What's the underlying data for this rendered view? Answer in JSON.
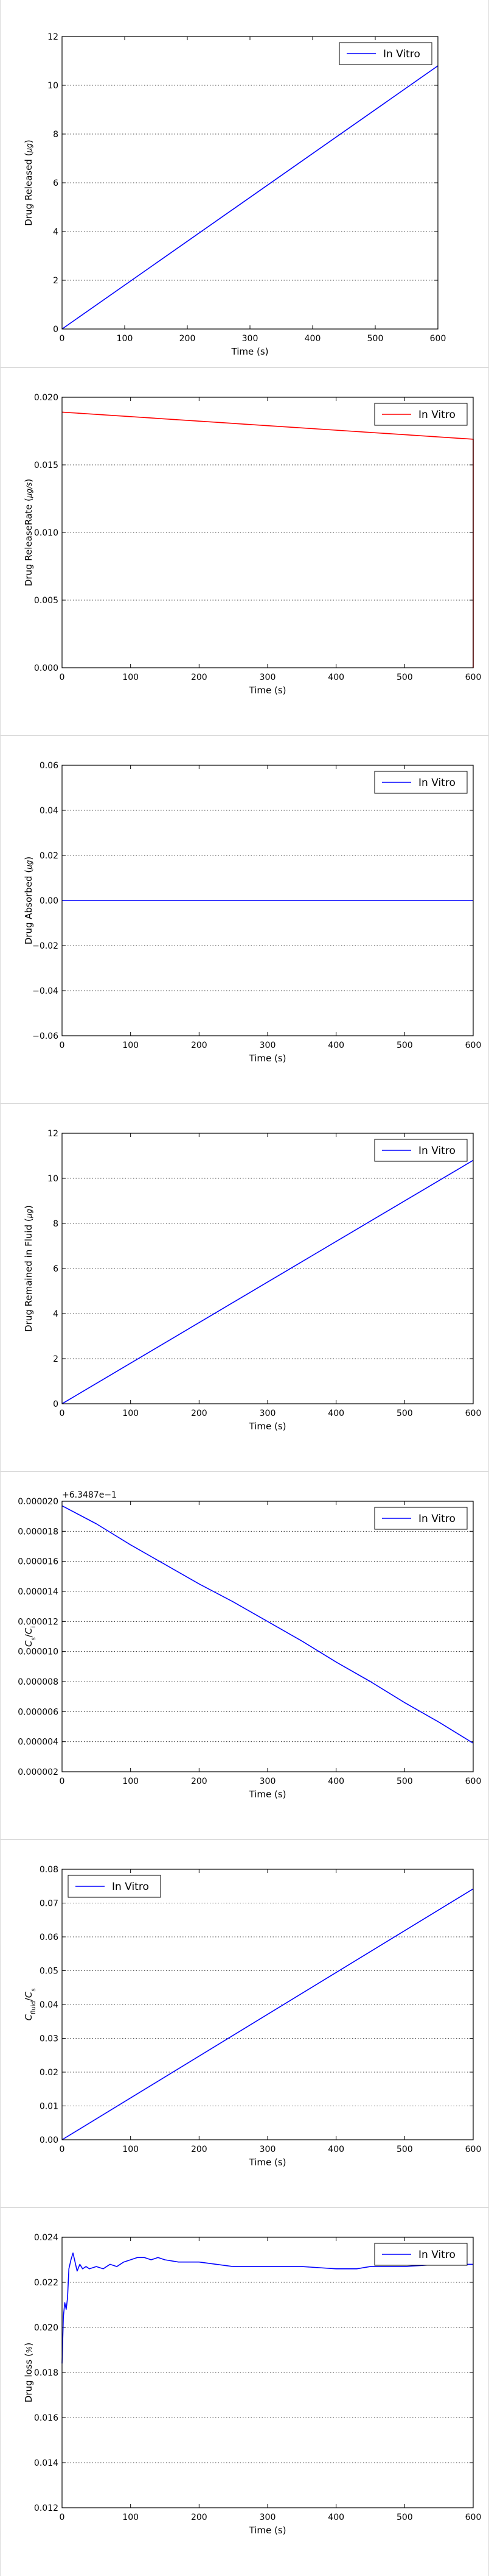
{
  "colors": {
    "blue": "#0000ff",
    "red": "#ff0000",
    "grid": "#000000",
    "frame": "#000000"
  },
  "charts": [
    {
      "name": "drug-released",
      "chart_data": {
        "type": "line",
        "xlabel": "Time (s)",
        "ylabel": "Drug Released (µg)",
        "xlim": [
          0,
          600
        ],
        "ylim": [
          0,
          12
        ],
        "xticks": [
          "0",
          "100",
          "200",
          "300",
          "400",
          "500",
          "600"
        ],
        "yticks": [
          "0",
          "2",
          "4",
          "6",
          "8",
          "10",
          "12"
        ],
        "offset_text": "",
        "grid": "y-dotted",
        "legend_position": "upper-right",
        "series": [
          {
            "name": "In Vitro",
            "color": "#0000ff",
            "x": [
              0,
              600
            ],
            "y": [
              0,
              10.8
            ]
          }
        ]
      }
    },
    {
      "name": "drug-release-rate",
      "chart_data": {
        "type": "line",
        "xlabel": "Time (s)",
        "ylabel": "Drug ReleaseRate (µg/s)",
        "xlim": [
          0,
          600
        ],
        "ylim": [
          0,
          0.02
        ],
        "xticks": [
          "0",
          "100",
          "200",
          "300",
          "400",
          "500",
          "600"
        ],
        "yticks": [
          "0.000",
          "0.005",
          "0.010",
          "0.015",
          "0.020"
        ],
        "offset_text": "",
        "grid": "y-dotted",
        "legend_position": "upper-right",
        "series": [
          {
            "name": "In Vitro",
            "color": "#ff0000",
            "x": [
              0,
              599,
              600,
              600
            ],
            "y": [
              0.0189,
              0.0169,
              0.0169,
              0
            ]
          }
        ]
      }
    },
    {
      "name": "drug-absorbed",
      "chart_data": {
        "type": "line",
        "xlabel": "Time (s)",
        "ylabel": "Drug Absorbed (µg)",
        "xlim": [
          0,
          600
        ],
        "ylim": [
          -0.06,
          0.06
        ],
        "xticks": [
          "0",
          "100",
          "200",
          "300",
          "400",
          "500",
          "600"
        ],
        "yticks": [
          "−0.06",
          "−0.04",
          "−0.02",
          "0.00",
          "0.02",
          "0.04",
          "0.06"
        ],
        "offset_text": "",
        "grid": "y-dotted",
        "legend_position": "upper-right",
        "series": [
          {
            "name": "In Vitro",
            "color": "#0000ff",
            "x": [
              0,
              600
            ],
            "y": [
              0,
              0
            ]
          }
        ]
      }
    },
    {
      "name": "drug-remained",
      "chart_data": {
        "type": "line",
        "xlabel": "Time (s)",
        "ylabel": "Drug Remained in Fluid (µg)",
        "xlim": [
          0,
          600
        ],
        "ylim": [
          0,
          12
        ],
        "xticks": [
          "0",
          "100",
          "200",
          "300",
          "400",
          "500",
          "600"
        ],
        "yticks": [
          "0",
          "2",
          "4",
          "6",
          "8",
          "10",
          "12"
        ],
        "offset_text": "",
        "grid": "y-dotted",
        "legend_position": "upper-right",
        "series": [
          {
            "name": "In Vitro",
            "color": "#0000ff",
            "x": [
              0,
              600
            ],
            "y": [
              0,
              10.8
            ]
          }
        ]
      }
    },
    {
      "name": "concentration-ratio",
      "chart_data": {
        "type": "line",
        "xlabel": "Time (s)",
        "ylabel": "C_s/C_i",
        "xlim": [
          0,
          600
        ],
        "ylim": [
          2e-06,
          2e-05
        ],
        "xticks": [
          "0",
          "100",
          "200",
          "300",
          "400",
          "500",
          "600"
        ],
        "yticks": [
          "0.000002",
          "0.000004",
          "0.000006",
          "0.000008",
          "0.000010",
          "0.000012",
          "0.000014",
          "0.000016",
          "0.000018",
          "0.000020"
        ],
        "offset_text": "+6.3487e−1",
        "grid": "y-dotted",
        "legend_position": "upper-right",
        "series": [
          {
            "name": "In Vitro",
            "color": "#0000ff",
            "x": [
              0,
              50,
              100,
              150,
              200,
              250,
              300,
              350,
              400,
              450,
              500,
              550,
              600
            ],
            "y": [
              1.97e-05,
              1.85e-05,
              1.71e-05,
              1.58e-05,
              1.45e-05,
              1.33e-05,
              1.2e-05,
              1.07e-05,
              9.3e-06,
              8e-06,
              6.6e-06,
              5.3e-06,
              3.9e-06
            ]
          }
        ]
      }
    },
    {
      "name": "fluid-concentration-ratio",
      "chart_data": {
        "type": "line",
        "xlabel": "Time (s)",
        "ylabel": "C_fluid/C_s",
        "xlim": [
          0,
          600
        ],
        "ylim": [
          0,
          0.08
        ],
        "xticks": [
          "0",
          "100",
          "200",
          "300",
          "400",
          "500",
          "600"
        ],
        "yticks": [
          "0.00",
          "0.01",
          "0.02",
          "0.03",
          "0.04",
          "0.05",
          "0.06",
          "0.07",
          "0.08"
        ],
        "offset_text": "",
        "grid": "y-dotted",
        "legend_position": "upper-left",
        "series": [
          {
            "name": "In Vitro",
            "color": "#0000ff",
            "x": [
              0,
              600
            ],
            "y": [
              0,
              0.0742
            ]
          }
        ]
      }
    },
    {
      "name": "drug-loss",
      "chart_data": {
        "type": "line",
        "xlabel": "Time (s)",
        "ylabel": "Drug loss (%)",
        "xlim": [
          0,
          600
        ],
        "ylim": [
          0.012,
          0.024
        ],
        "xticks": [
          "0",
          "100",
          "200",
          "300",
          "400",
          "500",
          "600"
        ],
        "yticks": [
          "0.012",
          "0.014",
          "0.016",
          "0.018",
          "0.020",
          "0.022",
          "0.024"
        ],
        "offset_text": "",
        "grid": "y-dotted",
        "legend_position": "upper-right",
        "series": [
          {
            "name": "In Vitro",
            "color": "#0000ff",
            "x": [
              0,
              2,
              4,
              6,
              8,
              10,
              13,
              16,
              19,
              22,
              26,
              30,
              35,
              40,
              50,
              60,
              70,
              80,
              90,
              100,
              110,
              120,
              130,
              140,
              150,
              170,
              200,
              250,
              300,
              350,
              400,
              430,
              450,
              500,
              550,
              600
            ],
            "y": [
              0.0184,
              0.0205,
              0.0211,
              0.0208,
              0.0213,
              0.0226,
              0.023,
              0.0233,
              0.0229,
              0.0225,
              0.0228,
              0.0226,
              0.0227,
              0.0226,
              0.0227,
              0.0226,
              0.0228,
              0.0227,
              0.0229,
              0.023,
              0.0231,
              0.0231,
              0.023,
              0.0231,
              0.023,
              0.0229,
              0.0229,
              0.0227,
              0.0227,
              0.0227,
              0.0226,
              0.0226,
              0.0227,
              0.0227,
              0.0228,
              0.0228
            ]
          }
        ]
      }
    }
  ]
}
